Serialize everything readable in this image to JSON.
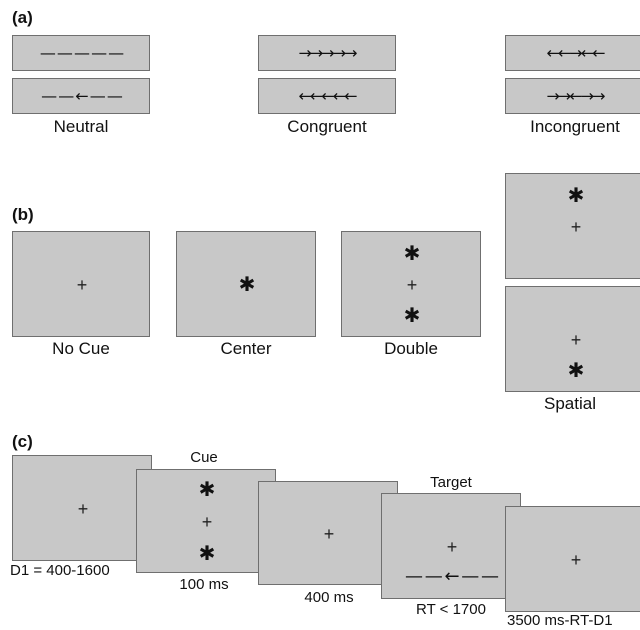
{
  "section_a": {
    "label": "(a)",
    "groups": [
      {
        "caption": "Neutral",
        "top_arrows": "— — — — —",
        "bottom_arrows": "— — ← — —"
      },
      {
        "caption": "Congruent",
        "top_arrows": "→→→→→",
        "bottom_arrows": "←←←←←"
      },
      {
        "caption": "Incongruent",
        "top_arrows": "←←→←←",
        "bottom_arrows": "→→←→→"
      }
    ]
  },
  "section_b": {
    "label": "(b)",
    "panels": [
      {
        "caption": "No Cue"
      },
      {
        "caption": "Center"
      },
      {
        "caption": "Double"
      },
      {
        "caption": "Spatial"
      }
    ]
  },
  "section_c": {
    "label": "(c)",
    "frames": [
      {
        "top_label": "",
        "bottom_label": "D1 = 400-1600"
      },
      {
        "top_label": "Cue",
        "bottom_label": "100 ms"
      },
      {
        "top_label": "",
        "bottom_label": "400 ms"
      },
      {
        "top_label": "Target",
        "bottom_label": "RT < 1700",
        "arrows": "— — ← — —"
      },
      {
        "top_label": "",
        "bottom_label": "3500 ms-RT-D1"
      }
    ]
  },
  "symbols": {
    "fixation": "+",
    "cue": "✱"
  }
}
